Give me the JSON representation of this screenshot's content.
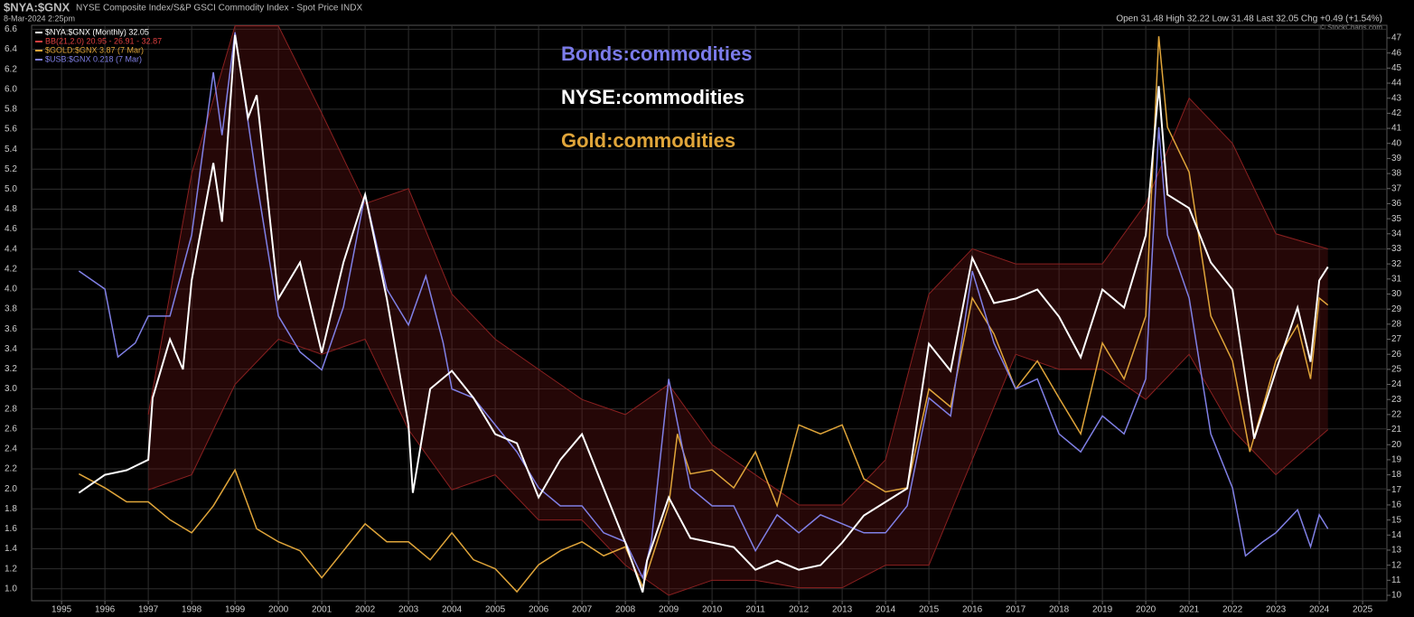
{
  "chart_data": {
    "type": "line",
    "title": "$NYA:$GNX",
    "subtitle": "NYSE Composite Index/S&P GSCI Commodity Index - Spot Price INDX",
    "date": "8-Mar-2024 2:25pm",
    "quote": "Open 31.48 High 32.22 Low 31.48 Last 32.05 Chg +0.49 (+1.54%)",
    "credit": "© StockCharts.com",
    "annotations": [
      {
        "text": "Bonds:commodities",
        "color": "#7b7bea"
      },
      {
        "text": "NYSE:commodities",
        "color": "#ffffff"
      },
      {
        "text": "Gold:commodities",
        "color": "#e0a53a"
      }
    ],
    "xlim": [
      1994.31,
      2025.56
    ],
    "xticks": [
      1995,
      1996,
      1997,
      1998,
      1999,
      2000,
      2001,
      2002,
      2003,
      2004,
      2005,
      2006,
      2007,
      2008,
      2009,
      2010,
      2011,
      2012,
      2013,
      2014,
      2015,
      2016,
      2017,
      2018,
      2019,
      2020,
      2021,
      2022,
      2023,
      2024,
      2025
    ],
    "ylim": [
      0.88,
      6.64
    ],
    "yticks": [
      {
        "value": 1,
        "label": "1.0"
      },
      1.2,
      1.4,
      1.6,
      1.8,
      {
        "value": 2,
        "label": "2.0"
      },
      2.2,
      2.4,
      2.6,
      2.8,
      {
        "value": 3,
        "label": "3.0"
      },
      3.2,
      3.4,
      3.6,
      3.8,
      {
        "value": 4,
        "label": "4.0"
      },
      4.2,
      4.4,
      4.6,
      4.8,
      {
        "value": 5,
        "label": "5.0"
      },
      5.2,
      5.4,
      5.6,
      5.8,
      {
        "value": 6,
        "label": "6.0"
      },
      6.2,
      6.4,
      6.6
    ],
    "y2lim": [
      9.64,
      47.84
    ],
    "y2ticks": [
      10,
      11,
      12,
      13,
      14,
      15,
      16,
      17,
      18,
      19,
      20,
      21,
      22,
      23,
      24,
      25,
      26,
      27,
      28,
      29,
      30,
      31,
      32,
      33,
      34,
      35,
      36,
      37,
      38,
      39,
      40,
      41,
      42,
      43,
      44,
      45,
      46,
      47
    ],
    "grid": true,
    "band": {
      "name": "BB(21,2.0) 20.95 - 26.91 - 32.87",
      "color": "#6a1414",
      "axis": "y2",
      "x": [
        1997,
        1998,
        1999,
        2000,
        2001,
        2002,
        2003,
        2004,
        2005,
        2006,
        2007,
        2008,
        2009,
        2010,
        2011,
        2012,
        2013,
        2014,
        2015,
        2016,
        2017,
        2018,
        2019,
        2020,
        2021,
        2022,
        2023,
        2024.2
      ],
      "upper": [
        22,
        38,
        47.8,
        47.8,
        42,
        36,
        37,
        30,
        27,
        25,
        23,
        22,
        24,
        20,
        18,
        16,
        16,
        19,
        30,
        33,
        32,
        32,
        32,
        36,
        43,
        40,
        34,
        33
      ],
      "lower": [
        17,
        18,
        24,
        27,
        26,
        27,
        21,
        17,
        18,
        15,
        15,
        12,
        10,
        11,
        11,
        10.5,
        10.5,
        12,
        12,
        19,
        26,
        25,
        25,
        23,
        26,
        21,
        18,
        21
      ]
    },
    "series": [
      {
        "name": "$NYA:$GNX (Monthly) 32.05",
        "color": "#ffffff",
        "axis": "y2",
        "x": [
          1995.4,
          1996,
          1996.5,
          1997,
          1997.1,
          1997.5,
          1997.8,
          1998,
          1998.5,
          1998.7,
          1999,
          1999.3,
          1999.5,
          2000,
          2000.5,
          2001,
          2001.5,
          2002,
          2002.5,
          2003,
          2003.1,
          2003.5,
          2004,
          2004.5,
          2005,
          2005.5,
          2006,
          2006.5,
          2007,
          2007.5,
          2008,
          2008.4,
          2008.5,
          2009,
          2009.5,
          2010,
          2010.5,
          2011,
          2011.5,
          2012,
          2012.5,
          2013,
          2013.5,
          2014,
          2014.5,
          2015,
          2015.5,
          2016,
          2016.5,
          2017,
          2017.5,
          2018,
          2018.5,
          2019,
          2019.5,
          2020,
          2020.3,
          2020.5,
          2021,
          2021.5,
          2022,
          2022.5,
          2023,
          2023.5,
          2023.8,
          2024,
          2024.2
        ],
        "values": [
          16.8,
          18.0,
          18.3,
          19.0,
          23.1,
          27.0,
          25.0,
          30.9,
          38.7,
          34.8,
          47.2,
          41.7,
          43.2,
          29.7,
          32.1,
          26.1,
          32.1,
          36.6,
          29.7,
          21.3,
          16.8,
          23.7,
          24.9,
          23.1,
          20.7,
          20.1,
          16.5,
          19.0,
          20.7,
          17.1,
          13.5,
          10.2,
          12.3,
          16.5,
          13.8,
          13.5,
          13.2,
          11.7,
          12.3,
          11.7,
          12.0,
          13.5,
          15.3,
          16.2,
          17.1,
          26.7,
          24.9,
          32.4,
          29.4,
          29.7,
          30.3,
          28.5,
          25.8,
          30.3,
          29.1,
          33.9,
          43.8,
          36.6,
          35.7,
          32.1,
          30.3,
          20.4,
          24.9,
          29.1,
          25.5,
          30.9,
          31.8
        ]
      },
      {
        "name": "$GOLD:$GNX 3.87 (7 Mar)",
        "color": "#e0a53a",
        "axis": "y",
        "x": [
          1995.4,
          1996,
          1996.5,
          1997,
          1997.5,
          1998,
          1998.5,
          1999,
          1999.5,
          2000,
          2000.5,
          2001,
          2001.5,
          2002,
          2002.5,
          2003,
          2003.5,
          2004,
          2004.5,
          2005,
          2005.5,
          2006,
          2006.5,
          2007,
          2007.5,
          2008,
          2008.4,
          2008.6,
          2009,
          2009.2,
          2009.5,
          2010,
          2010.5,
          2011,
          2011.5,
          2012,
          2012.5,
          2013,
          2013.5,
          2014,
          2014.5,
          2015,
          2015.5,
          2016,
          2016.5,
          2017,
          2017.5,
          2018,
          2018.5,
          2019,
          2019.5,
          2020,
          2020.3,
          2020.5,
          2021,
          2021.5,
          2022,
          2022.4,
          2022.7,
          2023,
          2023.5,
          2023.8,
          2024,
          2024.2
        ],
        "values": [
          2.15,
          2.01,
          1.87,
          1.87,
          1.69,
          1.56,
          1.83,
          2.19,
          1.6,
          1.47,
          1.38,
          1.11,
          1.38,
          1.65,
          1.47,
          1.47,
          1.29,
          1.56,
          1.29,
          1.2,
          0.97,
          1.24,
          1.38,
          1.47,
          1.33,
          1.42,
          1.02,
          1.29,
          1.83,
          2.55,
          2.15,
          2.19,
          2.01,
          2.37,
          1.83,
          2.64,
          2.55,
          2.64,
          2.1,
          1.97,
          2.01,
          3.0,
          2.82,
          3.91,
          3.55,
          3.0,
          3.28,
          2.91,
          2.55,
          3.46,
          3.1,
          3.73,
          6.53,
          5.62,
          5.17,
          3.73,
          3.28,
          2.37,
          2.82,
          3.28,
          3.64,
          3.1,
          3.91,
          3.84
        ]
      },
      {
        "name": "$USB:$GNX 0.218 (7 Mar)",
        "color": "#8080e6",
        "axis": "y",
        "x": [
          1995.4,
          1995.7,
          1996,
          1996.3,
          1996.7,
          1997,
          1997.5,
          1998,
          1998.5,
          1998.7,
          1999,
          1999.5,
          2000,
          2000.5,
          2001,
          2001.5,
          2002,
          2002.5,
          2003,
          2003.4,
          2003.8,
          2004,
          2004.5,
          2005,
          2005.5,
          2006,
          2006.5,
          2007,
          2007.5,
          2008,
          2008.4,
          2008.6,
          2009,
          2009.5,
          2010,
          2010.5,
          2011,
          2011.5,
          2012,
          2012.5,
          2013,
          2013.5,
          2014,
          2014.5,
          2015,
          2015.5,
          2016,
          2016.5,
          2017,
          2017.5,
          2018,
          2018.5,
          2019,
          2019.5,
          2020,
          2020.3,
          2020.5,
          2021,
          2021.5,
          2022,
          2022.3,
          2022.7,
          2023,
          2023.5,
          2023.8,
          2024,
          2024.2
        ],
        "values": [
          4.18,
          4.09,
          4.0,
          3.32,
          3.46,
          3.73,
          3.73,
          4.54,
          6.17,
          5.54,
          6.57,
          5.08,
          3.73,
          3.37,
          3.19,
          3.82,
          4.95,
          4.0,
          3.64,
          4.13,
          3.46,
          3.0,
          2.91,
          2.64,
          2.37,
          2.01,
          1.83,
          1.83,
          1.56,
          1.47,
          1.11,
          1.47,
          3.1,
          2.01,
          1.83,
          1.83,
          1.38,
          1.74,
          1.56,
          1.74,
          1.65,
          1.56,
          1.56,
          1.83,
          2.91,
          2.73,
          4.18,
          3.46,
          3.0,
          3.1,
          2.55,
          2.37,
          2.73,
          2.55,
          3.1,
          5.62,
          4.54,
          3.91,
          2.55,
          2.01,
          1.33,
          1.47,
          1.56,
          1.79,
          1.42,
          1.74,
          1.6
        ]
      }
    ]
  }
}
